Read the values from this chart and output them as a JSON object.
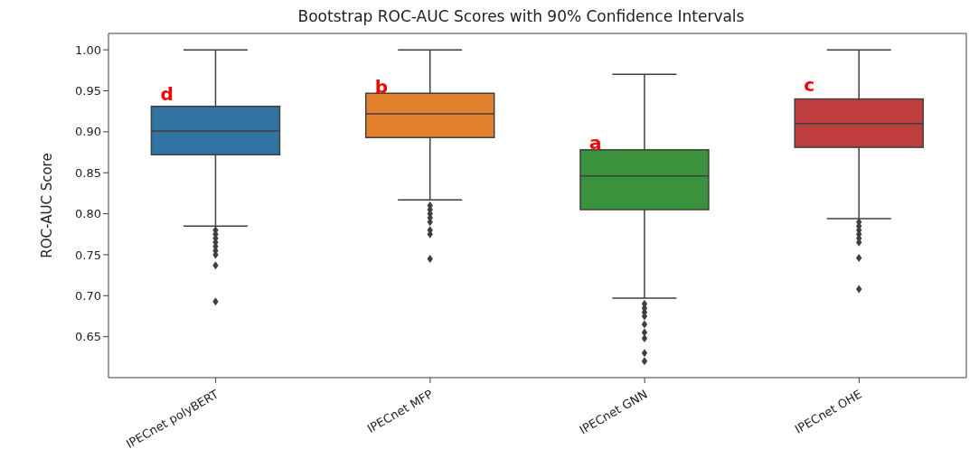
{
  "chart_data": {
    "type": "box",
    "title": "Bootstrap ROC-AUC Scores with 90% Confidence Intervals",
    "ylabel": "ROC-AUC Score",
    "categories": [
      "IPECnet polyBERT",
      "IPECnet MFP",
      "IPECnet GNN",
      "IPECnet OHE"
    ],
    "colors": [
      "#3274a1",
      "#e1812c",
      "#3a923a",
      "#c03d3e"
    ],
    "boxes": [
      {
        "low": 0.785,
        "q1": 0.872,
        "median": 0.901,
        "q3": 0.931,
        "high": 1.0,
        "outliers": [
          0.78,
          0.775,
          0.77,
          0.765,
          0.76,
          0.755,
          0.75,
          0.737,
          0.693
        ]
      },
      {
        "low": 0.817,
        "q1": 0.893,
        "median": 0.922,
        "q3": 0.947,
        "high": 1.0,
        "outliers": [
          0.81,
          0.805,
          0.8,
          0.795,
          0.79,
          0.78,
          0.775,
          0.745
        ]
      },
      {
        "low": 0.697,
        "q1": 0.805,
        "median": 0.846,
        "q3": 0.878,
        "high": 0.97,
        "outliers": [
          0.69,
          0.685,
          0.68,
          0.675,
          0.665,
          0.655,
          0.648,
          0.63,
          0.62
        ]
      },
      {
        "low": 0.794,
        "q1": 0.881,
        "median": 0.91,
        "q3": 0.94,
        "high": 1.0,
        "outliers": [
          0.79,
          0.785,
          0.78,
          0.775,
          0.77,
          0.765,
          0.746,
          0.708
        ]
      }
    ],
    "ylim": [
      0.6,
      1.02
    ],
    "yticks": [
      {
        "value": 0.65,
        "label": "0.65"
      },
      {
        "value": 0.7,
        "label": "0.70"
      },
      {
        "value": 0.75,
        "label": "0.75"
      },
      {
        "value": 0.8,
        "label": "0.80"
      },
      {
        "value": 0.85,
        "label": "0.85"
      },
      {
        "value": 0.9,
        "label": "0.90"
      },
      {
        "value": 0.95,
        "label": "0.95"
      },
      {
        "value": 1.0,
        "label": "1.00"
      }
    ],
    "annotations": [
      {
        "text": "d",
        "x": "IPECnet polyBERT",
        "y": 0.945
      },
      {
        "text": "b",
        "x": "IPECnet MFP",
        "y": 0.953
      },
      {
        "text": "a",
        "x": "IPECnet GNN",
        "y": 0.885
      },
      {
        "text": "c",
        "x": "IPECnet OHE",
        "y": 0.955
      }
    ],
    "grid": false,
    "legend": false
  }
}
